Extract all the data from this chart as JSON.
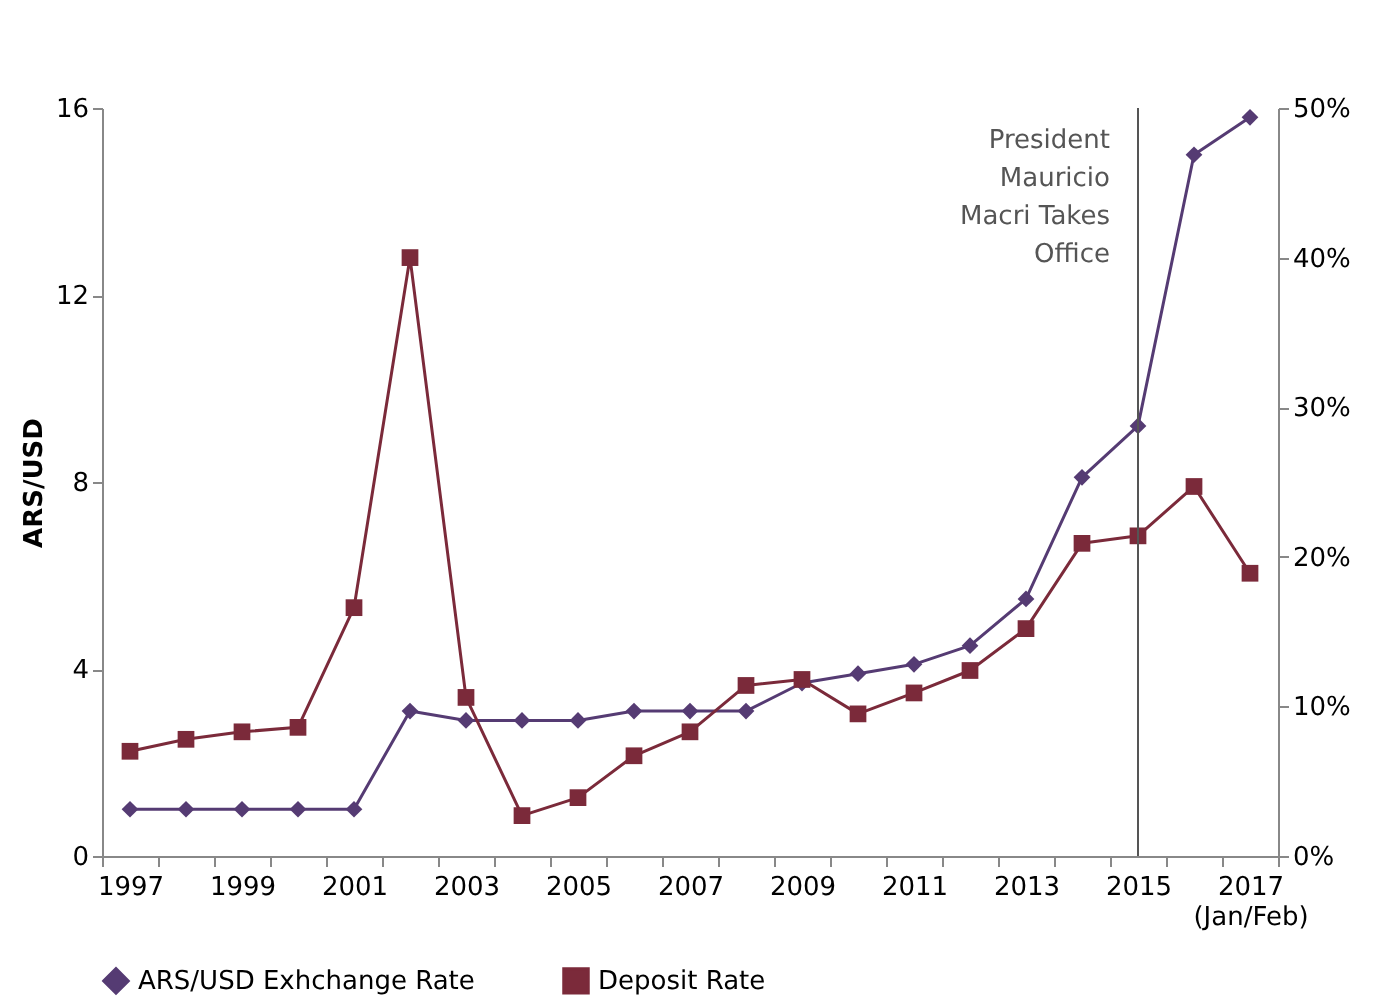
{
  "chart_data": {
    "type": "line",
    "ylabel": "ARS/USD",
    "categories": [
      "1997",
      null,
      "1999",
      null,
      "2001",
      null,
      "2003",
      null,
      "2005",
      null,
      "2007",
      null,
      "2009",
      null,
      "2011",
      null,
      "2013",
      null,
      "2015",
      null,
      "2017\n(Jan/Feb)"
    ],
    "series": [
      {
        "name": "ARS/USD Exhchange Rate",
        "color": "#553b73",
        "marker": "diamond",
        "values": [
          1.0,
          1.0,
          1.0,
          1.0,
          1.0,
          3.1,
          2.9,
          2.9,
          2.9,
          3.1,
          3.1,
          3.1,
          3.7,
          3.9,
          4.1,
          4.5,
          5.5,
          8.1,
          9.2,
          15.0,
          15.8
        ]
      },
      {
        "name": "Deposit Rate",
        "color": "#7b2a3a",
        "marker": "square",
        "axis": "y2",
        "values": [
          7.0,
          7.8,
          8.3,
          8.6,
          16.6,
          40.0,
          10.6,
          2.7,
          3.9,
          6.7,
          8.3,
          11.4,
          11.8,
          9.5,
          10.9,
          12.4,
          15.2,
          20.9,
          21.4,
          24.7,
          18.9
        ]
      }
    ],
    "ylim": [
      0,
      16
    ],
    "yticks": [
      0,
      4,
      8,
      12,
      16
    ],
    "y2lim": [
      0,
      50
    ],
    "y2ticks": [
      {
        "value": 0,
        "label": "0%"
      },
      {
        "value": 10,
        "label": "10%"
      },
      {
        "value": 20,
        "label": "20%"
      },
      {
        "value": 30,
        "label": "30%"
      },
      {
        "value": 40,
        "label": "40%"
      },
      {
        "value": 50,
        "label": "50%"
      }
    ],
    "ref_lines": [
      {
        "axis": "x",
        "value": "2015",
        "label": "President\nMauricio\nMacri Takes\nOffice",
        "color": "#555555"
      }
    ],
    "legend": "bottom"
  }
}
